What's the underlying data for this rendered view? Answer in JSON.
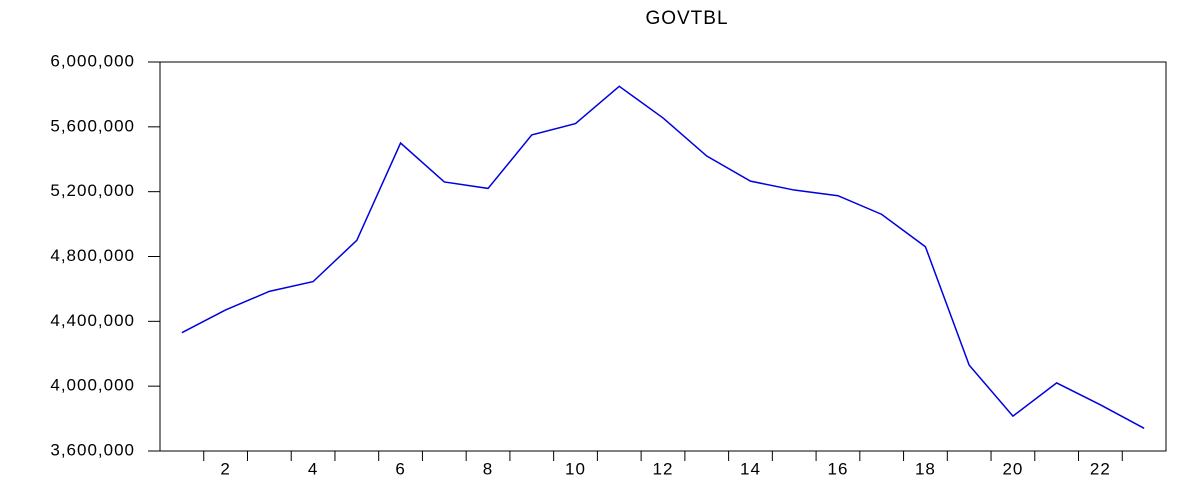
{
  "chart_data": {
    "type": "line",
    "title": "GOVTBL",
    "categories": [
      null,
      "2",
      null,
      "4",
      null,
      "6",
      null,
      "8",
      null,
      "10",
      null,
      "12",
      null,
      "14",
      null,
      "16",
      null,
      "18",
      null,
      "20",
      null,
      "22",
      null
    ],
    "values": [
      4330000,
      4470000,
      4585000,
      4645000,
      4900000,
      5500000,
      5260000,
      5220000,
      5550000,
      5620000,
      5850000,
      5655000,
      5420000,
      5265000,
      5210000,
      5175000,
      5060000,
      4860000,
      4130000,
      3815000,
      4020000,
      3885000,
      3740000
    ],
    "color": "#0000e0",
    "ylim": [
      3600000,
      6000000
    ],
    "yticks": [
      {
        "value": 3600000,
        "label": "3,600,000"
      },
      {
        "value": 4000000,
        "label": "4,000,000"
      },
      {
        "value": 4400000,
        "label": "4,400,000"
      },
      {
        "value": 4800000,
        "label": "4,800,000"
      },
      {
        "value": 5200000,
        "label": "5,200,000"
      },
      {
        "value": 5600000,
        "label": "5,600,000"
      },
      {
        "value": 6000000,
        "label": "6,000,000"
      }
    ],
    "grid": false
  }
}
